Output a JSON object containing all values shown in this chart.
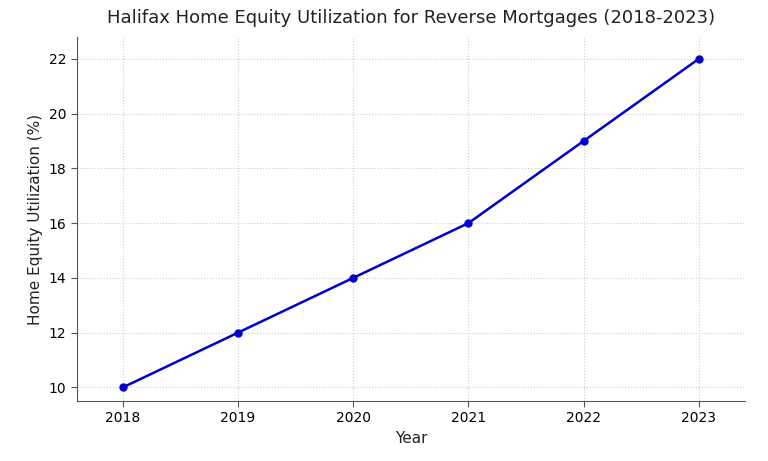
{
  "title": "Halifax Home Equity Utilization for Reverse Mortgages (2018-2023)",
  "xlabel": "Year",
  "ylabel": "Home Equity Utilization (%)",
  "x": [
    2018,
    2019,
    2020,
    2021,
    2022,
    2023
  ],
  "y": [
    10,
    12,
    14,
    16,
    19,
    22
  ],
  "line_color": "#0000CC",
  "marker": "o",
  "marker_color": "#0000CC",
  "marker_size": 5,
  "line_width": 1.8,
  "ylim": [
    9.5,
    22.8
  ],
  "xlim": [
    2017.6,
    2023.4
  ],
  "yticks": [
    10,
    12,
    14,
    16,
    18,
    20,
    22
  ],
  "xticks": [
    2018,
    2019,
    2020,
    2021,
    2022,
    2023
  ],
  "grid_color": "#cccccc",
  "grid_style": ":",
  "background_color": "#ffffff",
  "title_fontsize": 13,
  "label_fontsize": 11,
  "tick_fontsize": 10
}
